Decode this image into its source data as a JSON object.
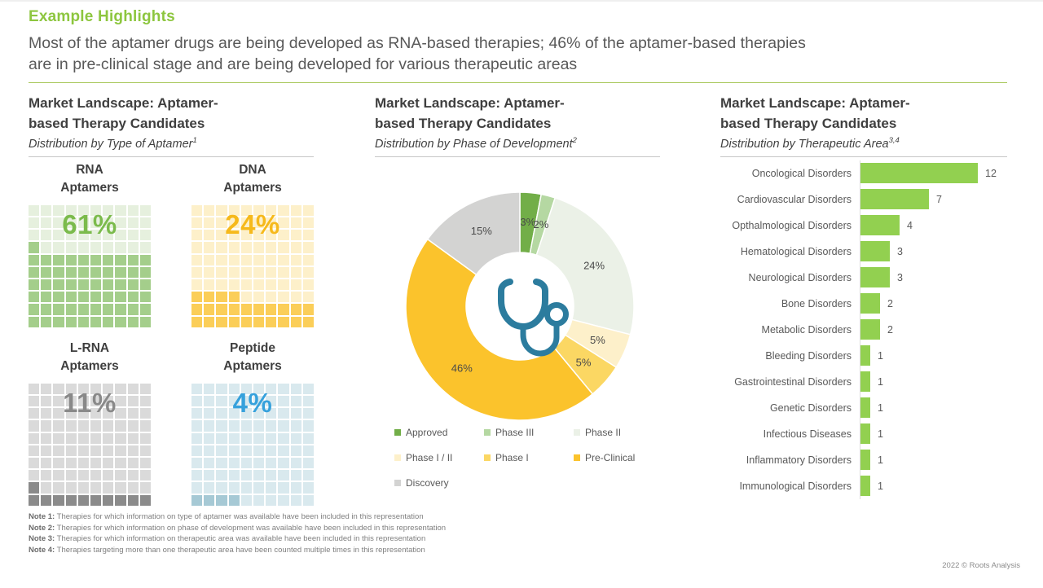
{
  "page": {
    "title": "Example Highlights",
    "subtitle": "Most of the aptamer drugs are being developed as RNA-based therapies; 46% of the aptamer-based therapies\nare in pre-clinical stage and are being developed for various therapeutic areas",
    "accent_green": "#8DC63F"
  },
  "sections": [
    {
      "title": "Market Landscape: Aptamer-\nbased Therapy Candidates",
      "subtitle": "Distribution by Type of Aptamer",
      "note_ref": "1"
    },
    {
      "title": "Market Landscape: Aptamer-\nbased Therapy Candidates",
      "subtitle": "Distribution by Phase of Development",
      "note_ref": "2"
    },
    {
      "title": "Market Landscape: Aptamer-\nbased Therapy Candidates",
      "subtitle": "Distribution by Therapeutic Area",
      "note_ref": "3,4"
    }
  ],
  "chart_data": [
    {
      "type": "waffle",
      "title": "Distribution by Type of Aptamer",
      "grid": {
        "rows": 10,
        "cols": 10,
        "fill_order": "bottom-left, row by row"
      },
      "items": [
        {
          "label": "RNA\nAptamers",
          "value_pct": 61,
          "fill_color": "#A4CE8B",
          "empty_color": "#E6F0DE",
          "text_color": "#7BBB4C"
        },
        {
          "label": "DNA\nAptamers",
          "value_pct": 24,
          "fill_color": "#FBCE58",
          "empty_color": "#FDF0CA",
          "text_color": "#F6B91B"
        },
        {
          "label": "L-RNA\nAptamers",
          "value_pct": 11,
          "fill_color": "#8B8B8B",
          "empty_color": "#DADADA",
          "text_color": "#898989"
        },
        {
          "label": "Peptide\nAptamers",
          "value_pct": 4,
          "fill_color": "#A6C9D5",
          "empty_color": "#D9E9EE",
          "text_color": "#36A1DC"
        }
      ]
    },
    {
      "type": "pie",
      "subtype": "donut",
      "title": "Distribution by Phase of Development",
      "start_angle_deg": 0,
      "direction": "clockwise",
      "center_icon": "stethoscope-icon",
      "center_icon_color": "#2C7C9E",
      "legend_position": "bottom",
      "slices": [
        {
          "label": "Approved",
          "value_pct": 3,
          "color": "#72AE48"
        },
        {
          "label": "Phase III",
          "value_pct": 2,
          "color": "#B5D8A2"
        },
        {
          "label": "Phase II",
          "value_pct": 24,
          "color": "#EBF1E7"
        },
        {
          "label": "Phase I / II",
          "value_pct": 5,
          "color": "#FDF0CA"
        },
        {
          "label": "Phase I",
          "value_pct": 5,
          "color": "#FBD763"
        },
        {
          "label": "Pre-Clinical",
          "value_pct": 46,
          "color": "#FBC32C"
        },
        {
          "label": "Discovery",
          "value_pct": 15,
          "color": "#D3D3D2"
        }
      ]
    },
    {
      "type": "bar",
      "orientation": "horizontal",
      "title": "Distribution by Therapeutic Area",
      "bar_color": "#92D050",
      "xlim": [
        0,
        12
      ],
      "categories": [
        "Oncological Disorders",
        "Cardiovascular Disorders",
        "Opthalmological Disorders",
        "Hematological Disorders",
        "Neurological Disorders",
        "Bone Disorders",
        "Metabolic Disorders",
        "Bleeding Disorders",
        "Gastrointestinal Disorders",
        "Genetic Disorders",
        "Infectious Diseases",
        "Inflammatory Disorders",
        "Immunological Disorders"
      ],
      "values": [
        12,
        7,
        4,
        3,
        3,
        2,
        2,
        1,
        1,
        1,
        1,
        1,
        1
      ]
    }
  ],
  "notes": [
    {
      "label": "Note 1:",
      "text": "Therapies for which information on type of aptamer was available have been included in this representation"
    },
    {
      "label": "Note 2:",
      "text": "Therapies for which information on phase of development was available have been included in this representation"
    },
    {
      "label": "Note 3:",
      "text": "Therapies for which information on therapeutic area was available have been included in this representation"
    },
    {
      "label": "Note 4:",
      "text": "Therapies targeting more than one therapeutic area have been counted multiple times in this representation"
    }
  ],
  "footer": {
    "copyright": "2022 © Roots Analysis"
  }
}
